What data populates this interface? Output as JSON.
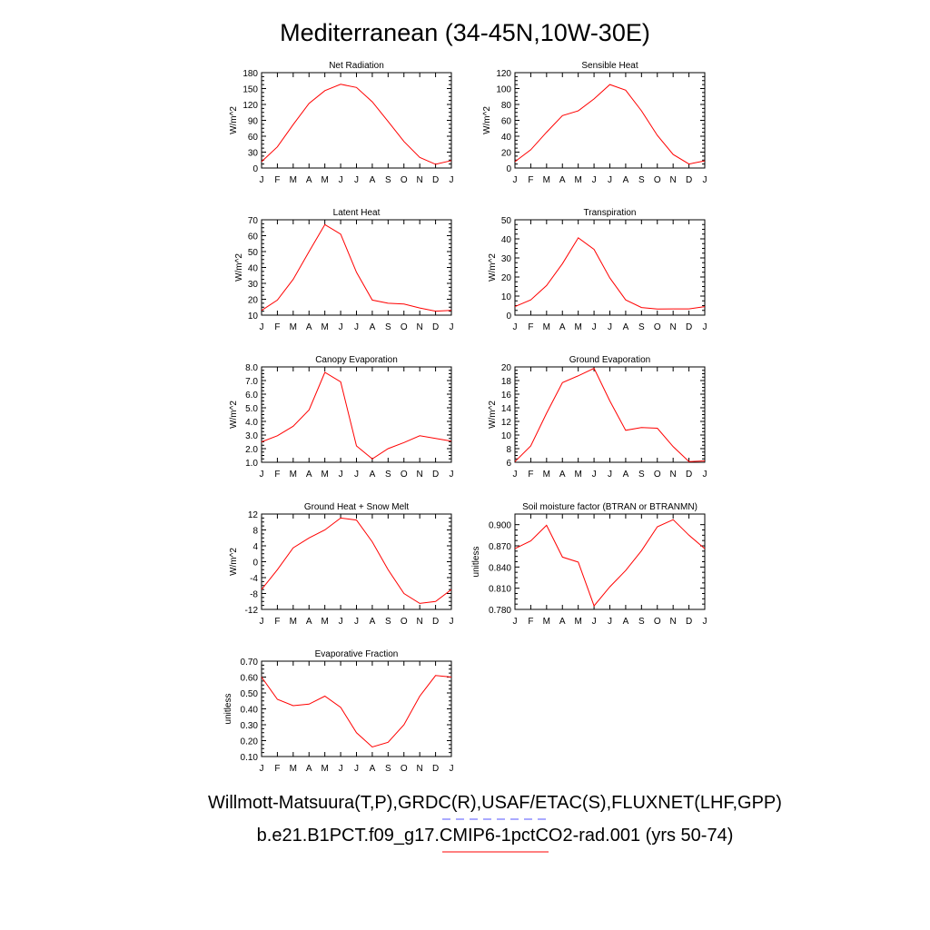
{
  "title": "Mediterranean (34-45N,10W-30E)",
  "legend": {
    "obs_label": "Willmott-Matsuura(T,P),GRDC(R),USAF/ETAC(S),FLUXNET(LHF,GPP)",
    "obs_color": "#5555ff",
    "model_label": "b.e21.B1PCT.f09_g17.CMIP6-1pctCO2-rad.001 (yrs 50-74)",
    "model_color": "#ff0000"
  },
  "chart_data": [
    {
      "type": "line",
      "title": "Net Radiation",
      "ylabel": "W/m^2",
      "categories": [
        "J",
        "F",
        "M",
        "A",
        "M",
        "J",
        "J",
        "A",
        "S",
        "O",
        "N",
        "D",
        "J"
      ],
      "ylim": [
        0,
        180
      ],
      "yticks": [
        "0",
        "30",
        "60",
        "90",
        "120",
        "150",
        "180"
      ],
      "series": [
        {
          "values": [
            12,
            40,
            82,
            122,
            146,
            158,
            152,
            125,
            88,
            50,
            20,
            7,
            14
          ],
          "color": "#ff0000"
        }
      ]
    },
    {
      "type": "line",
      "title": "Sensible Heat",
      "ylabel": "W/m^2",
      "categories": [
        "J",
        "F",
        "M",
        "A",
        "M",
        "J",
        "J",
        "A",
        "S",
        "O",
        "N",
        "D",
        "J"
      ],
      "ylim": [
        0,
        120
      ],
      "yticks": [
        "0",
        "20",
        "40",
        "60",
        "80",
        "100",
        "120"
      ],
      "series": [
        {
          "values": [
            8,
            23,
            45,
            66,
            72,
            87,
            105,
            98,
            72,
            41,
            17,
            5,
            9
          ],
          "color": "#ff0000"
        }
      ]
    },
    {
      "type": "line",
      "title": "Latent Heat",
      "ylabel": "W/m^2",
      "categories": [
        "J",
        "F",
        "M",
        "A",
        "M",
        "J",
        "J",
        "A",
        "S",
        "O",
        "N",
        "D",
        "J"
      ],
      "ylim": [
        10,
        70
      ],
      "yticks": [
        "10",
        "20",
        "30",
        "40",
        "50",
        "60",
        "70"
      ],
      "series": [
        {
          "values": [
            13,
            19.5,
            32.5,
            50,
            67,
            61,
            37,
            19.5,
            17.5,
            17,
            14.5,
            12.5,
            13
          ],
          "color": "#ff0000"
        }
      ]
    },
    {
      "type": "line",
      "title": "Transpiration",
      "ylabel": "W/m^2",
      "categories": [
        "J",
        "F",
        "M",
        "A",
        "M",
        "J",
        "J",
        "A",
        "S",
        "O",
        "N",
        "D",
        "J"
      ],
      "ylim": [
        0,
        50
      ],
      "yticks": [
        "0",
        "10",
        "20",
        "30",
        "40",
        "50"
      ],
      "series": [
        {
          "values": [
            4.5,
            8,
            15.5,
            27,
            40.5,
            34.5,
            19.5,
            8,
            4,
            3.2,
            3.3,
            3.3,
            4.5
          ],
          "color": "#ff0000"
        }
      ]
    },
    {
      "type": "line",
      "title": "Canopy Evaporation",
      "ylabel": "W/m^2",
      "categories": [
        "J",
        "F",
        "M",
        "A",
        "M",
        "J",
        "J",
        "A",
        "S",
        "O",
        "N",
        "D",
        "J"
      ],
      "ylim": [
        1.0,
        8.0
      ],
      "yticks": [
        "1.0",
        "2.0",
        "3.0",
        "4.0",
        "5.0",
        "6.0",
        "7.0",
        "8.0"
      ],
      "series": [
        {
          "values": [
            2.5,
            2.95,
            3.65,
            4.85,
            7.6,
            6.9,
            2.2,
            1.25,
            2.0,
            2.45,
            2.95,
            2.75,
            2.55
          ],
          "color": "#ff0000"
        }
      ]
    },
    {
      "type": "line",
      "title": "Ground Evaporation",
      "ylabel": "W/m^2",
      "categories": [
        "J",
        "F",
        "M",
        "A",
        "M",
        "J",
        "J",
        "A",
        "S",
        "O",
        "N",
        "D",
        "J"
      ],
      "ylim": [
        6,
        20
      ],
      "yticks": [
        "6",
        "8",
        "10",
        "12",
        "14",
        "16",
        "18",
        "20"
      ],
      "series": [
        {
          "values": [
            6.1,
            8.4,
            13.2,
            17.7,
            18.7,
            19.8,
            15.0,
            10.7,
            11.1,
            11.0,
            8.3,
            6.1,
            6.2
          ],
          "color": "#ff0000"
        }
      ]
    },
    {
      "type": "line",
      "title": "Ground Heat + Snow Melt",
      "ylabel": "W/m^2",
      "categories": [
        "J",
        "F",
        "M",
        "A",
        "M",
        "J",
        "J",
        "A",
        "S",
        "O",
        "N",
        "D",
        "J"
      ],
      "ylim": [
        -12,
        12
      ],
      "yticks": [
        "-12",
        "-8",
        "-4",
        "0",
        "4",
        "8",
        "12"
      ],
      "series": [
        {
          "values": [
            -7,
            -2,
            3.5,
            6,
            8,
            11,
            10.5,
            5,
            -2,
            -8,
            -10.5,
            -10,
            -7
          ],
          "color": "#ff0000"
        }
      ]
    },
    {
      "type": "line",
      "title": "Soil moisture factor (BTRAN or BTRANMN)",
      "ylabel": "unitless",
      "categories": [
        "J",
        "F",
        "M",
        "A",
        "M",
        "J",
        "J",
        "A",
        "S",
        "O",
        "N",
        "D",
        "J"
      ],
      "ylim": [
        0.78,
        0.915
      ],
      "yticks": [
        "0.780",
        "0.810",
        "0.840",
        "0.870",
        "0.900"
      ],
      "series": [
        {
          "values": [
            0.866,
            0.877,
            0.899,
            0.854,
            0.847,
            0.785,
            0.812,
            0.835,
            0.863,
            0.897,
            0.907,
            0.885,
            0.866
          ],
          "color": "#ff0000"
        }
      ]
    },
    {
      "type": "line",
      "title": "Evaporative Fraction",
      "ylabel": "unitless",
      "categories": [
        "J",
        "F",
        "M",
        "A",
        "M",
        "J",
        "J",
        "A",
        "S",
        "O",
        "N",
        "D",
        "J"
      ],
      "ylim": [
        0.1,
        0.7
      ],
      "yticks": [
        "0.10",
        "0.20",
        "0.30",
        "0.40",
        "0.50",
        "0.60",
        "0.70"
      ],
      "series": [
        {
          "values": [
            0.6,
            0.46,
            0.42,
            0.43,
            0.48,
            0.41,
            0.25,
            0.16,
            0.19,
            0.3,
            0.48,
            0.61,
            0.6
          ],
          "color": "#ff0000"
        }
      ]
    }
  ]
}
